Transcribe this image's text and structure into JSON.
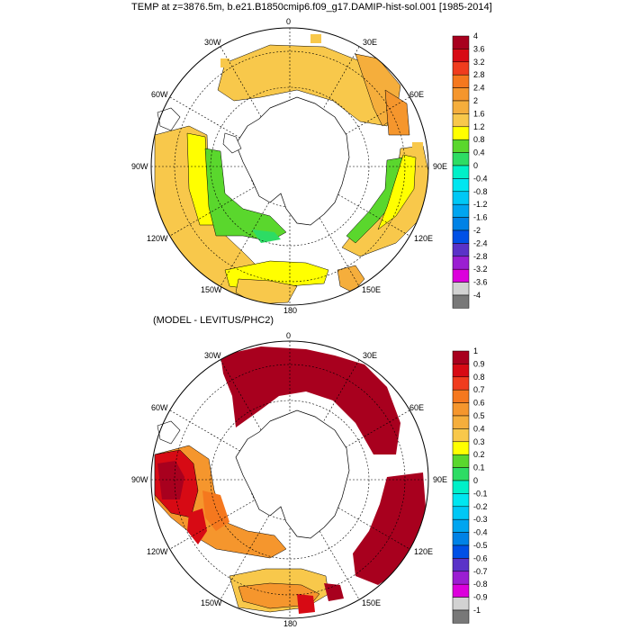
{
  "titles": {
    "top": "TEMP at z=3876.5m, b.e21.B1850cmip6.f09_g17.DAMIP-hist-sol.001 [1985-2014]",
    "bottom": "(MODEL - LEVITUS/PHC2)"
  },
  "longitude_labels": [
    "0",
    "30E",
    "60E",
    "90E",
    "120E",
    "150E",
    "180",
    "150W",
    "120W",
    "90W",
    "60W",
    "30W"
  ],
  "panels": [
    {
      "name": "model-temperature",
      "colorbar": {
        "labels": [
          "4",
          "3.6",
          "3.2",
          "2.8",
          "2.4",
          "2",
          "1.6",
          "1.2",
          "0.8",
          "0.4",
          "0",
          "-0.4",
          "-0.8",
          "-1.2",
          "-1.6",
          "-2",
          "-2.4",
          "-2.8",
          "-3.2",
          "-3.6",
          "-4"
        ],
        "colors": [
          "#a8001e",
          "#d70a14",
          "#f03c1e",
          "#f5781e",
          "#f5962d",
          "#f5ae3c",
          "#f8c84b",
          "#ffff00",
          "#5ad72d",
          "#2ddc64",
          "#00f0c8",
          "#00e6f0",
          "#00c8f5",
          "#00a5f0",
          "#0082e6",
          "#0050e6",
          "#5a32c8",
          "#9b1ed2",
          "#dc00dc",
          "#d2d2d2",
          "#787878"
        ]
      }
    },
    {
      "name": "model-minus-levitus",
      "colorbar": {
        "labels": [
          "1",
          "0.9",
          "0.8",
          "0.7",
          "0.6",
          "0.5",
          "0.4",
          "0.3",
          "0.2",
          "0.1",
          "0",
          "-0.1",
          "-0.2",
          "-0.3",
          "-0.4",
          "-0.5",
          "-0.6",
          "-0.7",
          "-0.8",
          "-0.9",
          "-1"
        ],
        "colors": [
          "#a8001e",
          "#d70a14",
          "#f03c1e",
          "#f5781e",
          "#f5962d",
          "#f5ae3c",
          "#f8c84b",
          "#ffff00",
          "#5ad72d",
          "#2ddc64",
          "#00f0c8",
          "#00e6f0",
          "#00c8f5",
          "#00a5f0",
          "#0082e6",
          "#0050e6",
          "#5a32c8",
          "#9b1ed2",
          "#dc00dc",
          "#d2d2d2",
          "#787878"
        ]
      }
    }
  ]
}
